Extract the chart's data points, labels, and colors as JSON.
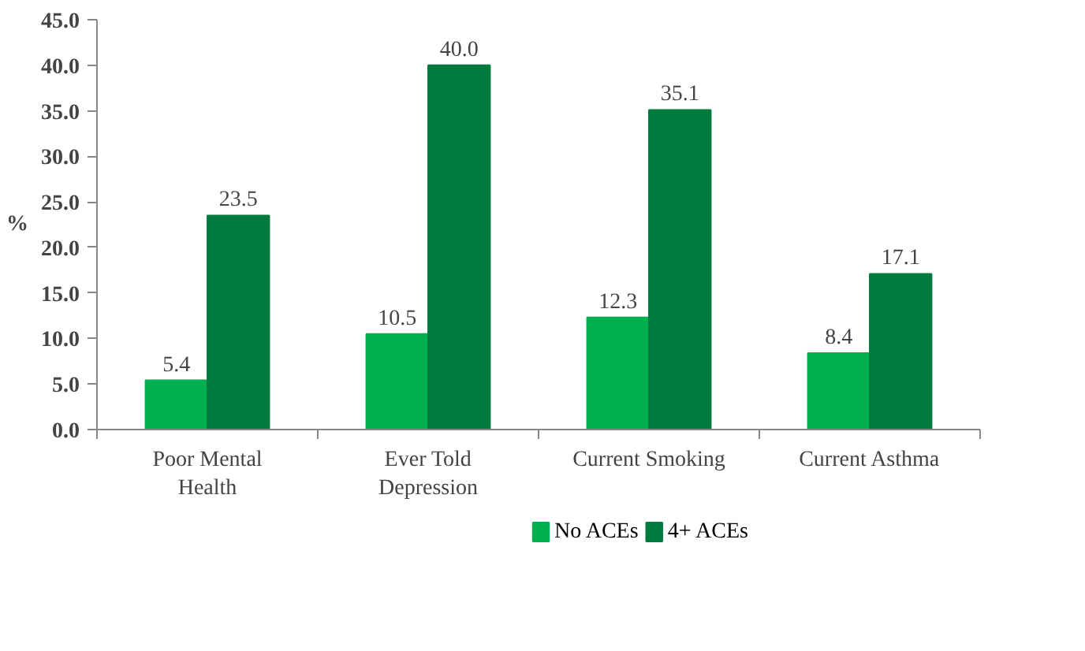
{
  "chart_data": {
    "type": "bar",
    "ylabel": "%",
    "categories": [
      "Poor Mental\nHealth",
      "Ever Told\nDepression",
      "Current Smoking",
      "Current Asthma"
    ],
    "series": [
      {
        "name": "No ACEs",
        "color": "#00b050",
        "values": [
          5.4,
          10.5,
          12.3,
          8.4
        ],
        "value_labels": [
          "5.4",
          "10.5",
          "12.3",
          "8.4"
        ]
      },
      {
        "name": "4+ ACEs",
        "color": "#007a3d",
        "values": [
          23.5,
          40.0,
          35.1,
          17.1
        ],
        "value_labels": [
          "23.5",
          "40.0",
          "35.1",
          "17.1"
        ]
      }
    ],
    "ylim": [
      0,
      45
    ],
    "yticks": [
      "0.0",
      "5.0",
      "10.0",
      "15.0",
      "20.0",
      "25.0",
      "30.0",
      "35.0",
      "40.0",
      "45.0"
    ],
    "legend": "bottom"
  }
}
